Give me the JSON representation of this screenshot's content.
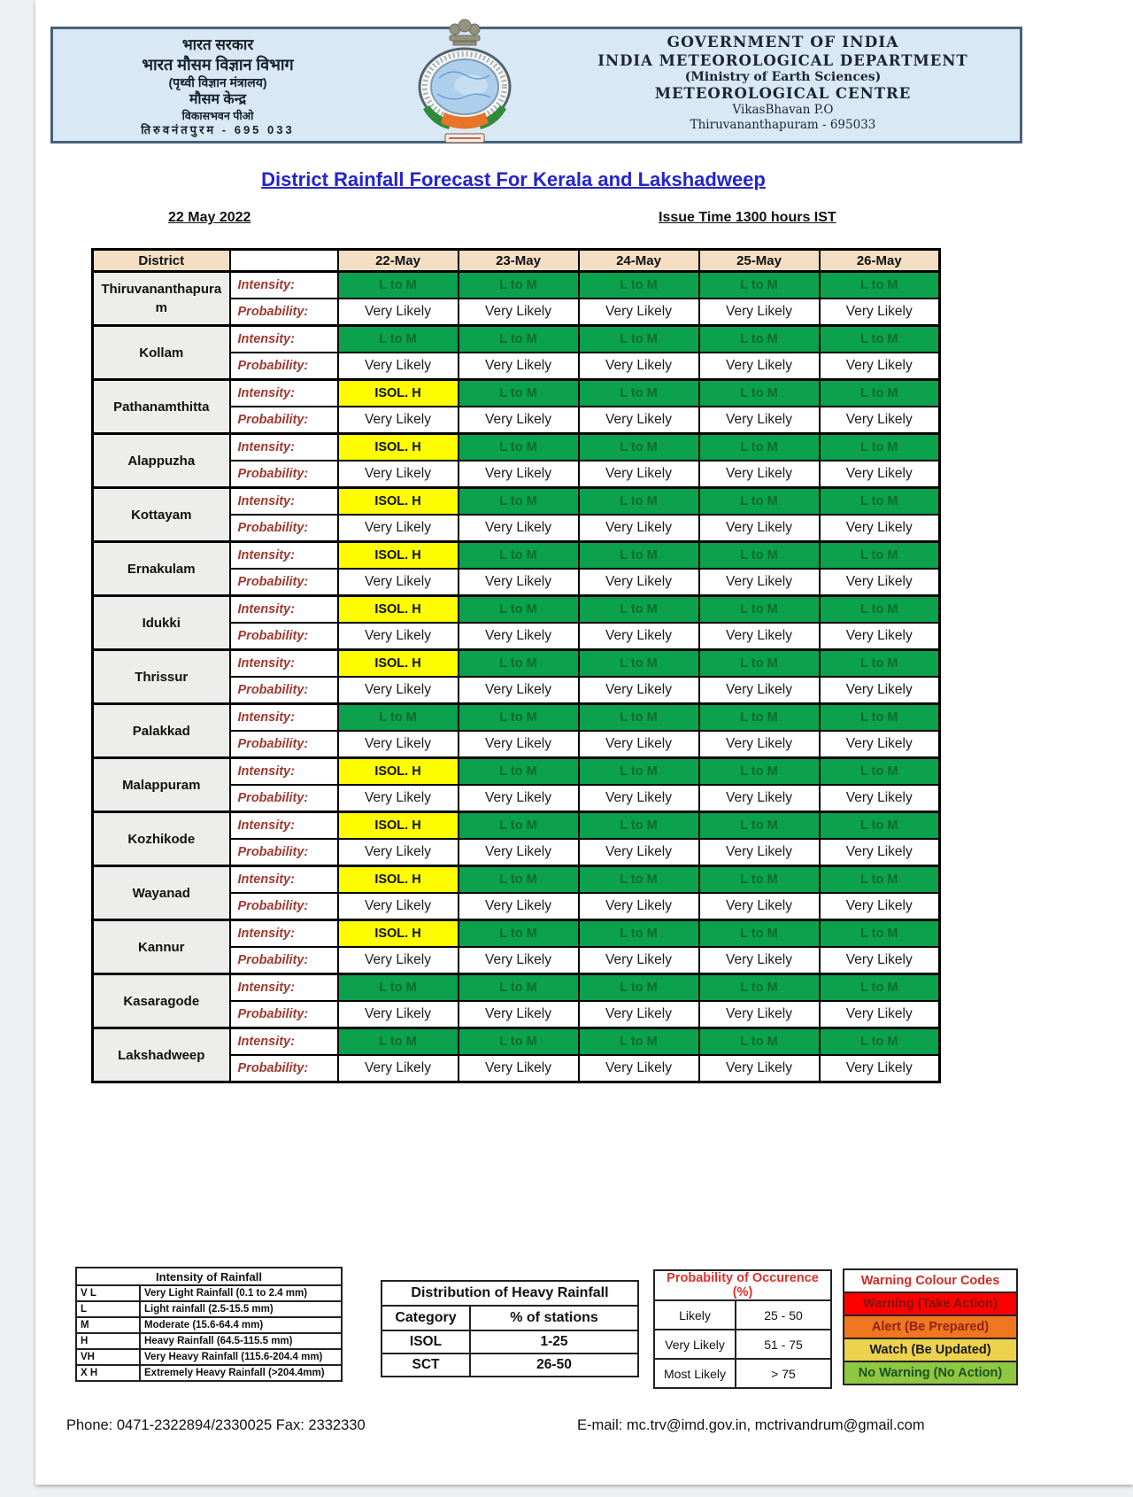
{
  "page": {
    "letterhead": {
      "left_lines": [
        "भारत सरकार",
        "भारत मौसम विज्ञान विभाग",
        "(पृथ्वी विज्ञान मंत्रालय)",
        "मौसम केन्द्र",
        "विकासभवन पीओ",
        "तिरुवनंतपुरम - 695 033"
      ],
      "right_lines": [
        "GOVERNMENT OF INDIA",
        "INDIA METEOROLOGICAL DEPARTMENT",
        "(Ministry of Earth Sciences)",
        "METEOROLOGICAL CENTRE",
        "VikasBhavan P.O",
        "Thiruvananthapuram - 695033"
      ],
      "logo": "imd-emblem-with-ashoka-capital"
    },
    "title": "District Rainfall Forecast For Kerala and Lakshadweep",
    "issue_date": "22 May 2022",
    "issue_time": "Issue Time 1300 hours IST",
    "forecast_table": {
      "columns": [
        "District",
        "",
        "22-May",
        "23-May",
        "24-May",
        "25-May",
        "26-May"
      ],
      "row_labels": {
        "intensity": "Intensity:",
        "probability": "Probability:"
      },
      "districts": [
        {
          "name": "Thiruvananthapuram",
          "intensity": [
            "L to M",
            "L to M",
            "L to M",
            "L to M",
            "L to M"
          ],
          "probability": [
            "Very Likely",
            "Very Likely",
            "Very Likely",
            "Very Likely",
            "Very Likely"
          ]
        },
        {
          "name": "Kollam",
          "intensity": [
            "L to M",
            "L to M",
            "L to M",
            "L to M",
            "L to M"
          ],
          "probability": [
            "Very Likely",
            "Very Likely",
            "Very Likely",
            "Very Likely",
            "Very Likely"
          ]
        },
        {
          "name": "Pathanamthitta",
          "intensity": [
            "ISOL. H",
            "L to M",
            "L to M",
            "L to M",
            "L to M"
          ],
          "probability": [
            "Very Likely",
            "Very Likely",
            "Very Likely",
            "Very Likely",
            "Very Likely"
          ]
        },
        {
          "name": "Alappuzha",
          "intensity": [
            "ISOL. H",
            "L to M",
            "L to M",
            "L to M",
            "L to M"
          ],
          "probability": [
            "Very Likely",
            "Very Likely",
            "Very Likely",
            "Very Likely",
            "Very Likely"
          ]
        },
        {
          "name": "Kottayam",
          "intensity": [
            "ISOL. H",
            "L to M",
            "L to M",
            "L to M",
            "L to M"
          ],
          "probability": [
            "Very Likely",
            "Very Likely",
            "Very Likely",
            "Very Likely",
            "Very Likely"
          ]
        },
        {
          "name": "Ernakulam",
          "intensity": [
            "ISOL. H",
            "L to M",
            "L to M",
            "L to M",
            "L to M"
          ],
          "probability": [
            "Very Likely",
            "Very Likely",
            "Very Likely",
            "Very Likely",
            "Very Likely"
          ]
        },
        {
          "name": "Idukki",
          "intensity": [
            "ISOL. H",
            "L to M",
            "L to M",
            "L to M",
            "L to M"
          ],
          "probability": [
            "Very Likely",
            "Very Likely",
            "Very Likely",
            "Very Likely",
            "Very Likely"
          ]
        },
        {
          "name": "Thrissur",
          "intensity": [
            "ISOL. H",
            "L to M",
            "L to M",
            "L to M",
            "L to M"
          ],
          "probability": [
            "Very Likely",
            "Very Likely",
            "Very Likely",
            "Very Likely",
            "Very Likely"
          ]
        },
        {
          "name": "Palakkad",
          "intensity": [
            "L to M",
            "L to M",
            "L to M",
            "L to M",
            "L to M"
          ],
          "probability": [
            "Very Likely",
            "Very Likely",
            "Very Likely",
            "Very Likely",
            "Very Likely"
          ]
        },
        {
          "name": "Malappuram",
          "intensity": [
            "ISOL. H",
            "L to M",
            "L to M",
            "L to M",
            "L to M"
          ],
          "probability": [
            "Very Likely",
            "Very Likely",
            "Very Likely",
            "Very Likely",
            "Very Likely"
          ]
        },
        {
          "name": "Kozhikode",
          "intensity": [
            "ISOL. H",
            "L to M",
            "L to M",
            "L to M",
            "L to M"
          ],
          "probability": [
            "Very Likely",
            "Very Likely",
            "Very Likely",
            "Very Likely",
            "Very Likely"
          ]
        },
        {
          "name": "Wayanad",
          "intensity": [
            "ISOL. H",
            "L to M",
            "L to M",
            "L to M",
            "L to M"
          ],
          "probability": [
            "Very Likely",
            "Very Likely",
            "Very Likely",
            "Very Likely",
            "Very Likely"
          ]
        },
        {
          "name": "Kannur",
          "intensity": [
            "ISOL. H",
            "L to M",
            "L to M",
            "L to M",
            "L to M"
          ],
          "probability": [
            "Very Likely",
            "Very Likely",
            "Very Likely",
            "Very Likely",
            "Very Likely"
          ]
        },
        {
          "name": "Kasaragode",
          "intensity": [
            "L to M",
            "L to M",
            "L to M",
            "L to M",
            "L to M"
          ],
          "probability": [
            "Very Likely",
            "Very Likely",
            "Very Likely",
            "Very Likely",
            "Very Likely"
          ]
        },
        {
          "name": "Lakshadweep",
          "intensity": [
            "L to M",
            "L to M",
            "L to M",
            "L to M",
            "L to M"
          ],
          "probability": [
            "Very Likely",
            "Very Likely",
            "Very Likely",
            "Very Likely",
            "Very Likely"
          ]
        }
      ]
    },
    "legends": {
      "intensity_legend": {
        "title": "Intensity of Rainfall",
        "rows": [
          [
            "V L",
            "Very Light Rainfall (0.1 to 2.4 mm)"
          ],
          [
            "L",
            "Light rainfall (2.5-15.5 mm)"
          ],
          [
            "M",
            "Moderate (15.6-64.4 mm)"
          ],
          [
            "H",
            "Heavy Rainfall (64.5-115.5 mm)"
          ],
          [
            "VH",
            "Very Heavy Rainfall (115.6-204.4 mm)"
          ],
          [
            "X H",
            "Extremely Heavy Rainfall (>204.4mm)"
          ]
        ]
      },
      "distribution_legend": {
        "title": "Distribution of Heavy Rainfall",
        "header": [
          "Category",
          "% of stations"
        ],
        "rows": [
          [
            "ISOL",
            "1-25"
          ],
          [
            "SCT",
            "26-50"
          ]
        ]
      },
      "probability_legend": {
        "title": "Probability of Occurence (%)",
        "rows": [
          [
            "Likely",
            "25 - 50"
          ],
          [
            "Very Likely",
            "51 - 75"
          ],
          [
            "Most Likely",
            "> 75"
          ]
        ]
      },
      "warning_codes": {
        "title": "Warning Colour Codes",
        "rows": [
          {
            "label": "Warning (Take Action)",
            "bg": "#FE0000",
            "fg": "#7e150d"
          },
          {
            "label": "Alert (Be Prepared)",
            "bg": "#F0761F",
            "fg": "#8f2415"
          },
          {
            "label": "Watch (Be Updated)",
            "bg": "#EDD24E",
            "fg": "#1a1a1a"
          },
          {
            "label": "No Warning (No Action)",
            "bg": "#8FC642",
            "fg": "#175320"
          }
        ]
      }
    },
    "footer": {
      "phone": "Phone: 0471-2322894/2330025 Fax: 2332330",
      "email": "E-mail: mc.trv@imd.gov.in, mctrivandrum@gmail.com"
    }
  },
  "cell_styles": {
    "L to M": {
      "bg": "#0BA14D",
      "fg": "#0d6b2f"
    },
    "ISOL. H": {
      "bg": "#FDFD00",
      "fg": "#111111"
    }
  },
  "colors": {
    "title_blue": "#2424cd",
    "table_header_bg": "#F4DEC3",
    "district_bg": "#EDEDEB",
    "row_label_red": "#A03A30",
    "letterhead_bg": "#D8E9F5",
    "letterhead_border": "#47617C"
  }
}
